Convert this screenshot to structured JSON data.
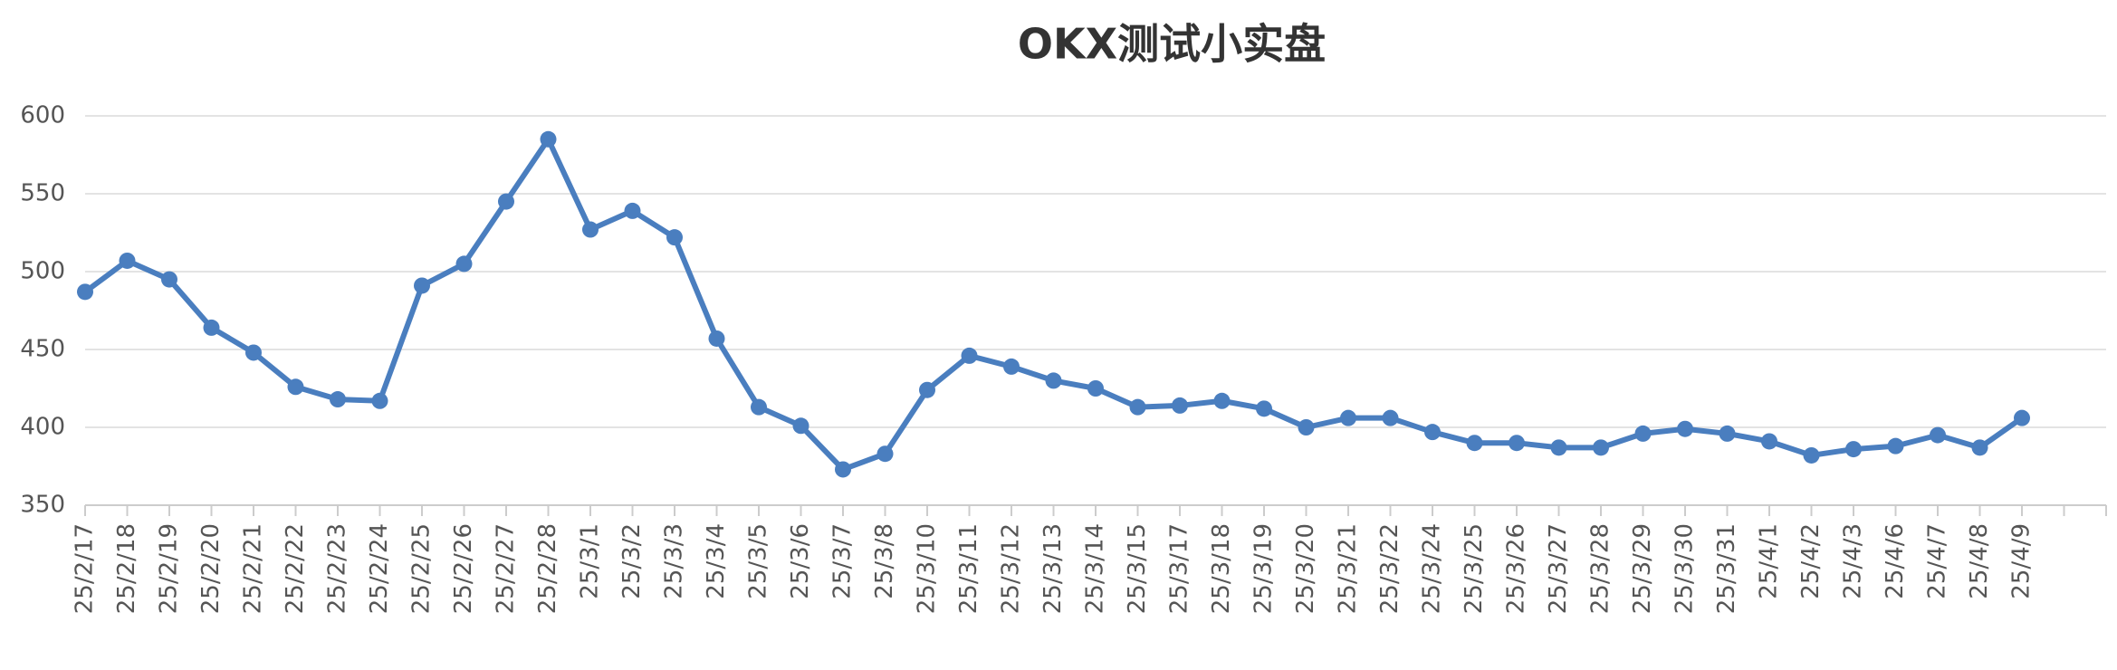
{
  "chart_data": {
    "type": "line",
    "title": "OKX测试小实盘",
    "categories": [
      "25/2/17",
      "25/2/18",
      "25/2/19",
      "25/2/20",
      "25/2/21",
      "25/2/22",
      "25/2/23",
      "25/2/24",
      "25/2/25",
      "25/2/26",
      "25/2/27",
      "25/2/28",
      "25/3/1",
      "25/3/2",
      "25/3/3",
      "25/3/4",
      "25/3/5",
      "25/3/6",
      "25/3/7",
      "25/3/8",
      "25/3/10",
      "25/3/11",
      "25/3/12",
      "25/3/13",
      "25/3/14",
      "25/3/15",
      "25/3/17",
      "25/3/18",
      "25/3/19",
      "25/3/20",
      "25/3/21",
      "25/3/22",
      "25/3/24",
      "25/3/25",
      "25/3/26",
      "25/3/27",
      "25/3/28",
      "25/3/29",
      "25/3/30",
      "25/3/31",
      "25/4/1",
      "25/4/2",
      "25/4/3",
      "25/4/6",
      "25/4/7",
      "25/4/8",
      "25/4/9",
      null,
      null
    ],
    "values": [
      487,
      507,
      495,
      464,
      448,
      426,
      418,
      417,
      491,
      505,
      545,
      585,
      527,
      539,
      522,
      457,
      413,
      401,
      373,
      383,
      424,
      446,
      439,
      430,
      425,
      413,
      414,
      417,
      412,
      400,
      406,
      406,
      397,
      390,
      390,
      387,
      387,
      396,
      399,
      396,
      391,
      382,
      386,
      388,
      395,
      387,
      406,
      null,
      null
    ],
    "color": "#4a7ebf",
    "ylim": [
      350,
      600
    ],
    "yticks": [
      350,
      400,
      450,
      500,
      550,
      600
    ],
    "grid": true
  }
}
